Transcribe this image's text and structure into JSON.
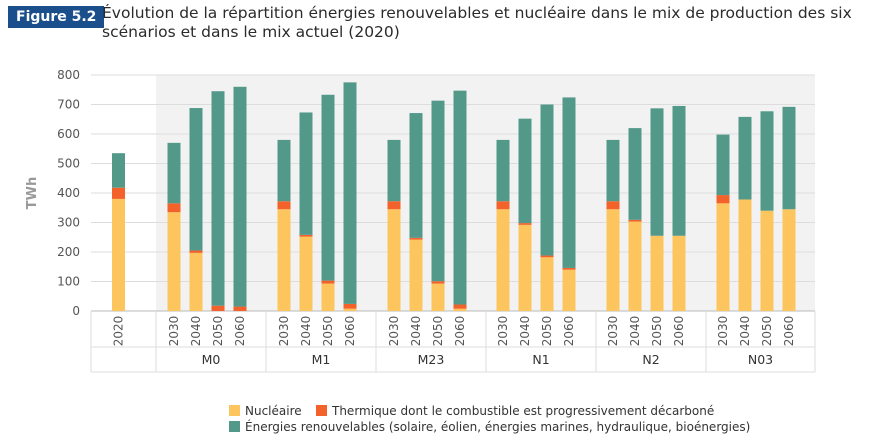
{
  "figure_label": "Figure 5.2",
  "title": "Évolution de la répartition énergies renouvelables et nucléaire dans le mix de production des six scénarios et dans le mix actuel (2020)",
  "colors": {
    "nucleaire": "#fcc55d",
    "thermique": "#f2622a",
    "renouvelables": "#53998a",
    "band": "#f2f2f2",
    "grid": "#dddddd"
  },
  "chart_data": {
    "type": "bar",
    "stacked": true,
    "ylabel": "TWh",
    "ylim": [
      0,
      800
    ],
    "yticks": [
      0,
      100,
      200,
      300,
      400,
      500,
      600,
      700,
      800
    ],
    "series_names": [
      "Nucléaire",
      "Thermique dont le combustible est progressivement décarboné",
      "Énergies renouvelables (solaire, éolien, énergies marines, hydraulique, bioénergies)"
    ],
    "groups": [
      {
        "name": "",
        "shaded": false,
        "bars": [
          {
            "year": "2020",
            "nucleaire": 380,
            "thermique": 38,
            "renouvelables": 117
          }
        ]
      },
      {
        "name": "M0",
        "shaded": true,
        "bars": [
          {
            "year": "2030",
            "nucleaire": 335,
            "thermique": 30,
            "renouvelables": 205
          },
          {
            "year": "2040",
            "nucleaire": 197,
            "thermique": 8,
            "renouvelables": 483
          },
          {
            "year": "2050",
            "nucleaire": 0,
            "thermique": 18,
            "renouvelables": 727
          },
          {
            "year": "2060",
            "nucleaire": 0,
            "thermique": 15,
            "renouvelables": 745
          }
        ]
      },
      {
        "name": "M1",
        "shaded": true,
        "bars": [
          {
            "year": "2030",
            "nucleaire": 345,
            "thermique": 27,
            "renouvelables": 208
          },
          {
            "year": "2040",
            "nucleaire": 252,
            "thermique": 6,
            "renouvelables": 415
          },
          {
            "year": "2050",
            "nucleaire": 93,
            "thermique": 10,
            "renouvelables": 630
          },
          {
            "year": "2060",
            "nucleaire": 8,
            "thermique": 16,
            "renouvelables": 751
          }
        ]
      },
      {
        "name": "M23",
        "shaded": true,
        "bars": [
          {
            "year": "2030",
            "nucleaire": 345,
            "thermique": 27,
            "renouvelables": 208
          },
          {
            "year": "2040",
            "nucleaire": 242,
            "thermique": 6,
            "renouvelables": 423
          },
          {
            "year": "2050",
            "nucleaire": 93,
            "thermique": 8,
            "renouvelables": 612
          },
          {
            "year": "2060",
            "nucleaire": 8,
            "thermique": 14,
            "renouvelables": 725
          }
        ]
      },
      {
        "name": "N1",
        "shaded": true,
        "bars": [
          {
            "year": "2030",
            "nucleaire": 345,
            "thermique": 27,
            "renouvelables": 208
          },
          {
            "year": "2040",
            "nucleaire": 292,
            "thermique": 6,
            "renouvelables": 354
          },
          {
            "year": "2050",
            "nucleaire": 182,
            "thermique": 6,
            "renouvelables": 512
          },
          {
            "year": "2060",
            "nucleaire": 140,
            "thermique": 6,
            "renouvelables": 578
          }
        ]
      },
      {
        "name": "N2",
        "shaded": true,
        "bars": [
          {
            "year": "2030",
            "nucleaire": 345,
            "thermique": 27,
            "renouvelables": 208
          },
          {
            "year": "2040",
            "nucleaire": 303,
            "thermique": 6,
            "renouvelables": 311
          },
          {
            "year": "2050",
            "nucleaire": 255,
            "thermique": 0,
            "renouvelables": 432
          },
          {
            "year": "2060",
            "nucleaire": 255,
            "thermique": 0,
            "renouvelables": 440
          }
        ]
      },
      {
        "name": "N03",
        "shaded": true,
        "bars": [
          {
            "year": "2030",
            "nucleaire": 365,
            "thermique": 28,
            "renouvelables": 205
          },
          {
            "year": "2040",
            "nucleaire": 378,
            "thermique": 0,
            "renouvelables": 280
          },
          {
            "year": "2050",
            "nucleaire": 340,
            "thermique": 0,
            "renouvelables": 337
          },
          {
            "year": "2060",
            "nucleaire": 345,
            "thermique": 0,
            "renouvelables": 347
          }
        ]
      }
    ]
  }
}
